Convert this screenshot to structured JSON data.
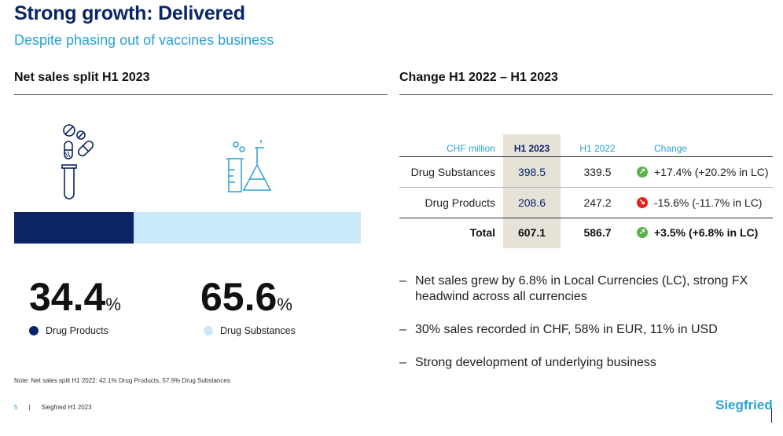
{
  "header": {
    "title": "Strong growth: Delivered",
    "subtitle": "Despite phasing out of vaccines business"
  },
  "left": {
    "heading": "Net sales split H1 2023",
    "icons": [
      "pills-testtube-icon",
      "lab-flask-icon"
    ],
    "split_bar": [
      {
        "label": "Drug Products",
        "value": 34.4,
        "color": "#0a2466"
      },
      {
        "label": "Drug Substances",
        "value": 65.6,
        "color": "#c9e8f8"
      }
    ],
    "stats": [
      {
        "value": "34.4",
        "unit": "%",
        "label": "Drug Products",
        "color": "#0a2466"
      },
      {
        "value": "65.6",
        "unit": "%",
        "label": "Drug Substances",
        "color": "#c9e8f8"
      }
    ],
    "note": "Note: Net sales split H1 2022: 42.1% Drug Products, 57.9% Drug Substances"
  },
  "right": {
    "heading": "Change H1 2022 – H1 2023",
    "table": {
      "columns": [
        "CHF million",
        "H1 2023",
        "H1 2022",
        "Change"
      ],
      "rows": [
        {
          "label": "Drug Substances",
          "h1_2023": "398.5",
          "h1_2022": "339.5",
          "change": "+17.4% (+20.2% in LC)",
          "direction": "up"
        },
        {
          "label": "Drug Products",
          "h1_2023": "208.6",
          "h1_2022": "247.2",
          "change": "-15.6% (-11.7% in LC)",
          "direction": "down"
        },
        {
          "label": "Total",
          "h1_2023": "607.1",
          "h1_2022": "586.7",
          "change": "+3.5% (+6.8% in LC)",
          "direction": "up"
        }
      ]
    },
    "bullets": [
      "Net sales grew by 6.8% in Local Currencies (LC), strong FX headwind across all currencies",
      "30% sales recorded in CHF, 58% in EUR, 11% in USD",
      "Strong development of underlying business"
    ],
    "bullet_marker": "–"
  },
  "footer": {
    "page": "5",
    "separator": "|",
    "text": "Siegfried H1 2023",
    "brand": "Siegfried"
  },
  "colors": {
    "up": "#5bb14a",
    "down": "#e2231a",
    "navy": "#0a2466",
    "accent": "#2aa1d8"
  }
}
